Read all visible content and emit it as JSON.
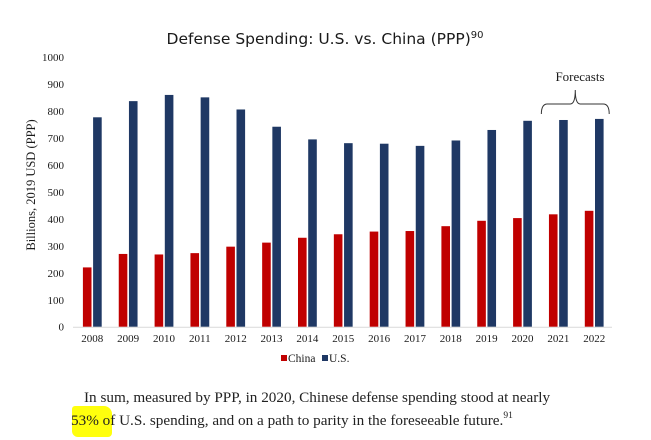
{
  "chart_data": {
    "type": "bar",
    "title": "Defense Spending: U.S. vs. China (PPP)",
    "title_footnote": "90",
    "xlabel": "",
    "ylabel": "Billions, 2019 USD (PPP)",
    "ylim": [
      0,
      1000
    ],
    "yticks": [
      0,
      100,
      200,
      300,
      400,
      500,
      600,
      700,
      800,
      900,
      1000
    ],
    "ytick_labels": [
      "0",
      "100",
      "200",
      "300",
      "400",
      "500",
      "600",
      "700",
      "800",
      "900",
      "1000"
    ],
    "grid": false,
    "categories": [
      "2008",
      "2009",
      "2010",
      "2011",
      "2012",
      "2013",
      "2014",
      "2015",
      "2016",
      "2017",
      "2018",
      "2019",
      "2020",
      "2021",
      "2022"
    ],
    "series": [
      {
        "name": "China",
        "color": "#c00000",
        "values": [
          220,
          270,
          268,
          273,
          297,
          312,
          330,
          343,
          353,
          355,
          373,
          393,
          403,
          417,
          430
        ]
      },
      {
        "name": "U.S.",
        "color": "#1f3864",
        "values": [
          777,
          837,
          860,
          851,
          806,
          742,
          695,
          681,
          679,
          671,
          691,
          730,
          764,
          767,
          771
        ]
      }
    ],
    "legend": {
      "placement": "bottom-center",
      "entries": [
        "China",
        "U.S."
      ]
    },
    "annotations": [
      {
        "text": "Forecasts",
        "type": "bracket",
        "spans_categories": [
          "2021",
          "2022"
        ]
      }
    ]
  },
  "caption": {
    "line1": "In sum, measured by PPP, in 2020, Chinese defense spending stood at nearly",
    "highlighted": "53%",
    "line2_rest": " of U.S. spending, and on a path to parity in the foreseeable future.",
    "footnote": "91"
  },
  "colors": {
    "china": "#c00000",
    "us": "#1f3864",
    "highlight": "#ffff00",
    "axis": "#d9d9d9"
  }
}
